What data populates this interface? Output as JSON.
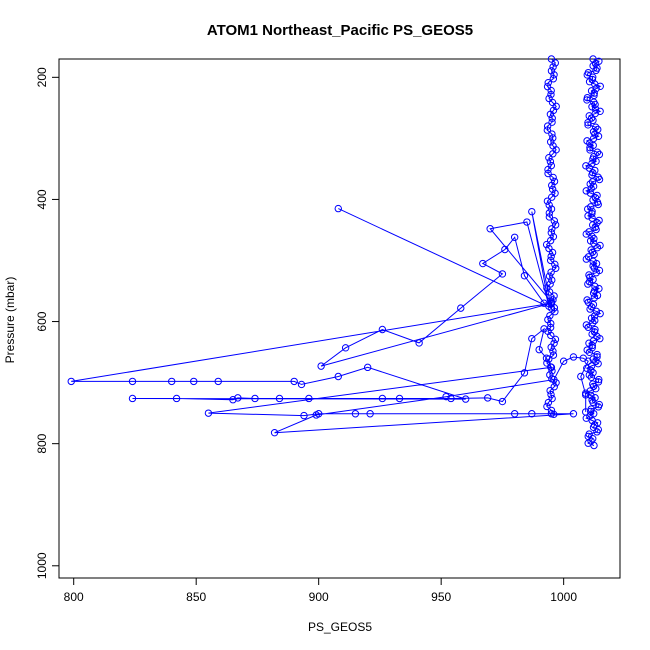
{
  "chart_data": {
    "type": "scatter",
    "title": "ATOM1 Northeast_Pacific PS_GEOS5",
    "xlabel": "PS_GEOS5",
    "ylabel": "Pressure (mbar)",
    "xlim": [
      794,
      1023
    ],
    "ylim": [
      1020,
      170
    ],
    "y_reversed": true,
    "x_ticks": [
      800,
      850,
      900,
      950,
      1000
    ],
    "y_ticks": [
      200,
      400,
      600,
      800,
      1000
    ],
    "grid": false,
    "legend": "none",
    "series": [
      {
        "color": "#0000ff",
        "marker": "open-circle",
        "points": [
          [
            908,
            415
          ],
          [
            995,
            578
          ],
          [
            987,
            420
          ],
          [
            994,
            575
          ],
          [
            985,
            437
          ],
          [
            970,
            448
          ],
          [
            995,
            568
          ],
          [
            992,
            570
          ],
          [
            984,
            525
          ],
          [
            980,
            462
          ],
          [
            976,
            482
          ],
          [
            967,
            505
          ],
          [
            975,
            522
          ],
          [
            958,
            578
          ],
          [
            941,
            635
          ],
          [
            926,
            613
          ],
          [
            911,
            643
          ],
          [
            901,
            673
          ],
          [
            995,
            570
          ],
          [
            799,
            698
          ],
          [
            824,
            698
          ],
          [
            840,
            698
          ],
          [
            849,
            698
          ],
          [
            859,
            698
          ],
          [
            890,
            698
          ],
          [
            893,
            703
          ],
          [
            908,
            690
          ],
          [
            920,
            675
          ],
          [
            960,
            727
          ],
          [
            824,
            726
          ],
          [
            842,
            726
          ],
          [
            865,
            728
          ],
          [
            867,
            725
          ],
          [
            874,
            726
          ],
          [
            884,
            726
          ],
          [
            896,
            726
          ],
          [
            926,
            726
          ],
          [
            933,
            726
          ],
          [
            954,
            726
          ],
          [
            969,
            725
          ],
          [
            975,
            731
          ],
          [
            984,
            684
          ],
          [
            987,
            628
          ],
          [
            992,
            612
          ],
          [
            990,
            646
          ],
          [
            993,
            660
          ],
          [
            995,
            675
          ],
          [
            855,
            750
          ],
          [
            894,
            754
          ],
          [
            900,
            751
          ],
          [
            915,
            751
          ],
          [
            921,
            751
          ],
          [
            980,
            751
          ],
          [
            987,
            751
          ],
          [
            995,
            751
          ],
          [
            1004,
            751
          ],
          [
            882,
            782
          ],
          [
            899,
            753
          ],
          [
            952,
            723
          ],
          [
            996,
            695
          ],
          [
            1000,
            665
          ],
          [
            1004,
            658
          ],
          [
            1008,
            660
          ],
          [
            1010,
            665
          ],
          [
            1007,
            690
          ],
          [
            1009,
            720
          ],
          [
            1009,
            748
          ]
        ]
      },
      {
        "color": "#0000ff",
        "marker": "open-circle",
        "segment": "left-column",
        "x_range": [
          993,
          997
        ],
        "y_range": [
          170,
          752
        ]
      },
      {
        "color": "#0000ff",
        "marker": "open-circle",
        "segment": "right-column",
        "x_range": [
          1009,
          1015
        ],
        "y_range": [
          170,
          803
        ]
      }
    ]
  }
}
